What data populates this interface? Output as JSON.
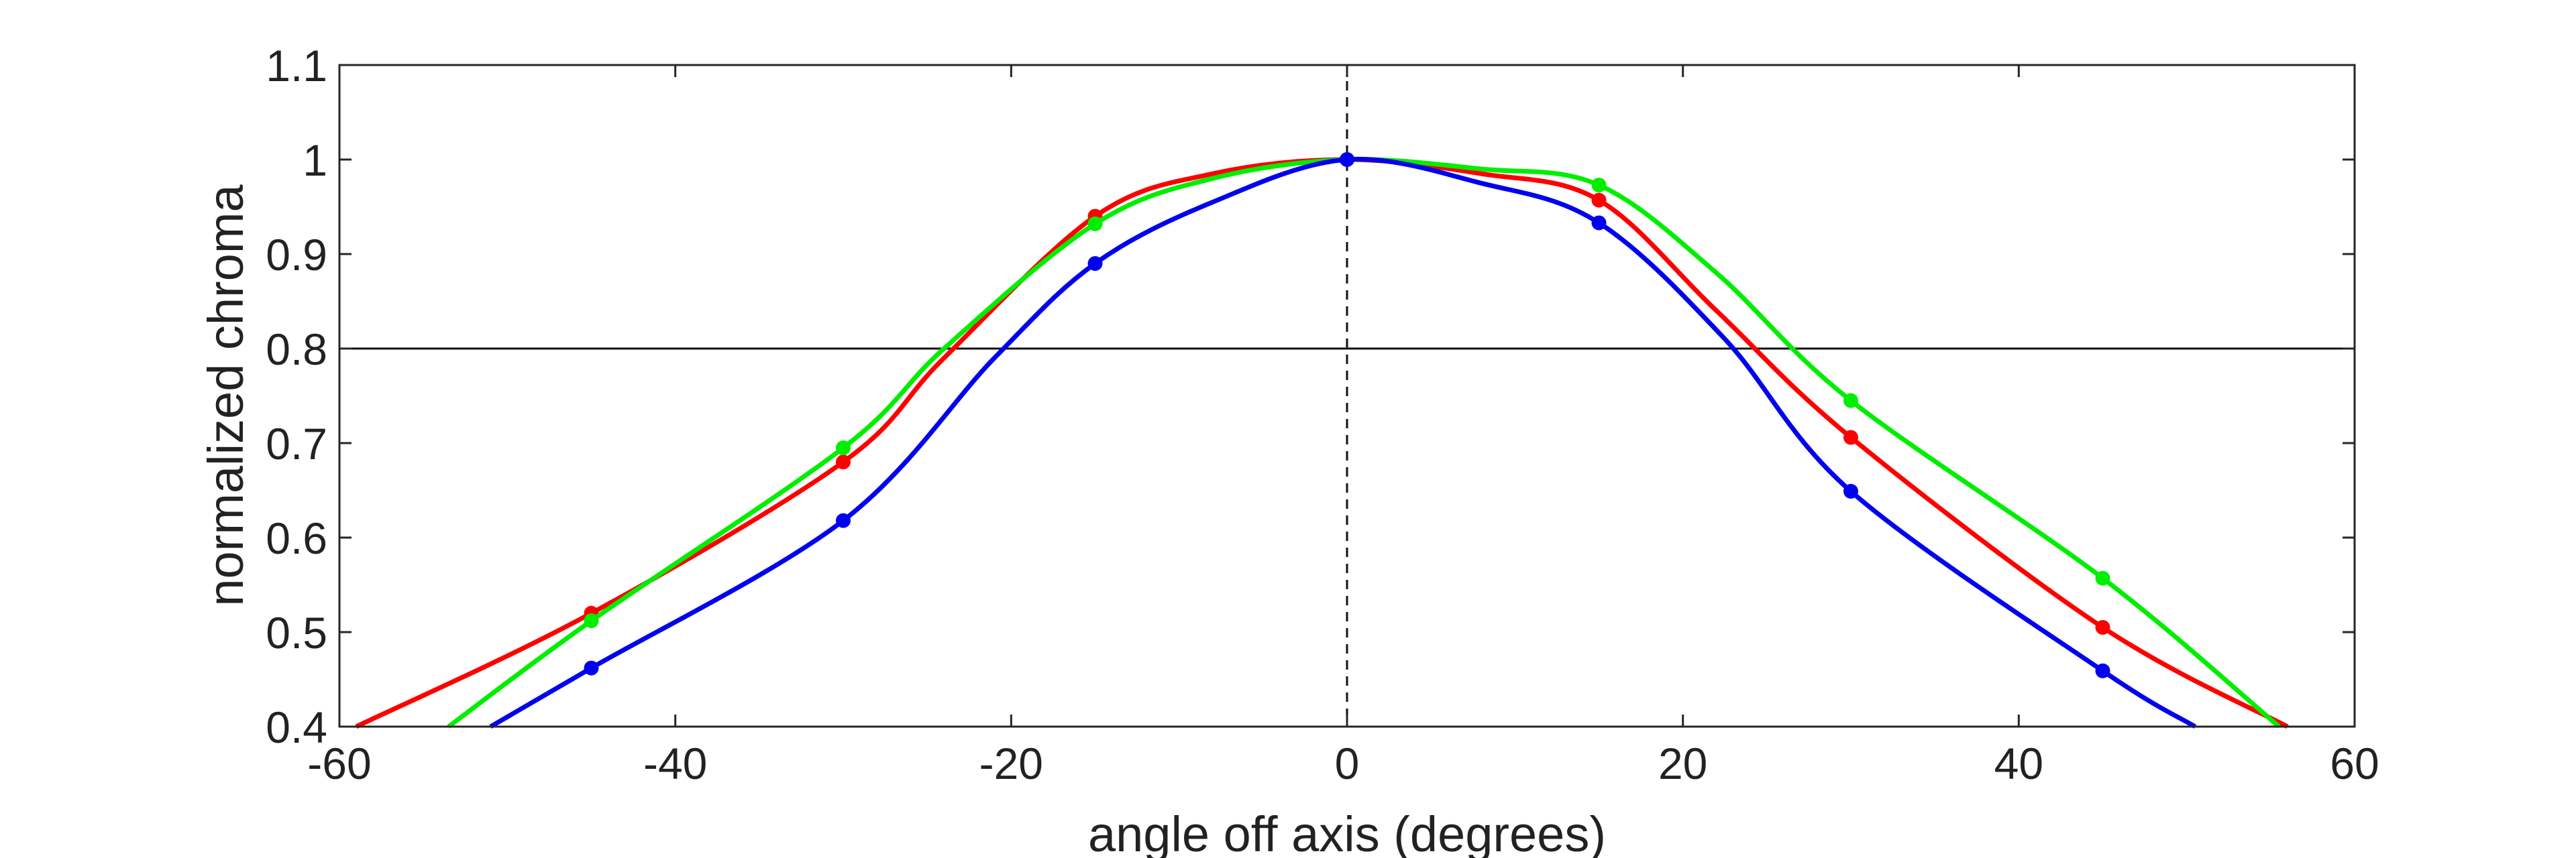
{
  "chart_data": {
    "type": "line",
    "xlabel": "angle off axis (degrees)",
    "ylabel": "normalized chroma",
    "xlim": [
      -60,
      60
    ],
    "ylim": [
      0.4,
      1.1
    ],
    "xticks": [
      -60,
      -40,
      -20,
      0,
      20,
      40,
      60
    ],
    "yticks": [
      0.4,
      0.5,
      0.6,
      0.7,
      0.8,
      0.9,
      1,
      1.1
    ],
    "xtick_labels": [
      "-60",
      "-40",
      "-20",
      "0",
      "20",
      "40",
      "60"
    ],
    "ytick_labels": [
      "0.4",
      "0.5",
      "0.6",
      "0.7",
      "0.8",
      "0.9",
      "1",
      "1.1"
    ],
    "reference_hline": 0.8,
    "reference_vline": 0,
    "grid": false,
    "series": [
      {
        "color": "#ff0000",
        "x": [
          -45,
          -30,
          -15,
          0,
          15,
          30,
          45
        ],
        "y": [
          0.52,
          0.68,
          0.94,
          1.0,
          0.957,
          0.706,
          0.505
        ],
        "curve_x": [
          -59,
          -45,
          -30,
          -24,
          -15,
          -8,
          0,
          8,
          15,
          22,
          30,
          45,
          56
        ],
        "curve_y": [
          0.4,
          0.52,
          0.68,
          0.79,
          0.94,
          0.985,
          1.0,
          0.985,
          0.957,
          0.84,
          0.706,
          0.505,
          0.4
        ]
      },
      {
        "color": "#00ee00",
        "x": [
          -45,
          -30,
          -15,
          0,
          15,
          30,
          45
        ],
        "y": [
          0.512,
          0.695,
          0.932,
          1.0,
          0.973,
          0.745,
          0.557
        ],
        "curve_x": [
          -53.5,
          -45,
          -30,
          -24,
          -15,
          -8,
          0,
          8,
          15,
          22,
          30,
          45,
          55.5
        ],
        "curve_y": [
          0.4,
          0.512,
          0.695,
          0.8,
          0.932,
          0.98,
          1.0,
          0.99,
          0.973,
          0.88,
          0.745,
          0.557,
          0.4
        ]
      },
      {
        "color": "#0000ee",
        "x": [
          -45,
          -30,
          -15,
          0,
          15,
          30,
          45
        ],
        "y": [
          0.462,
          0.618,
          0.89,
          1.0,
          0.933,
          0.649,
          0.459
        ],
        "curve_x": [
          -51,
          -45,
          -30,
          -21,
          -15,
          -8,
          0,
          8,
          15,
          22.5,
          30,
          45,
          50.5
        ],
        "curve_y": [
          0.4,
          0.462,
          0.618,
          0.79,
          0.89,
          0.955,
          1.0,
          0.975,
          0.933,
          0.81,
          0.649,
          0.459,
          0.4
        ]
      }
    ]
  }
}
